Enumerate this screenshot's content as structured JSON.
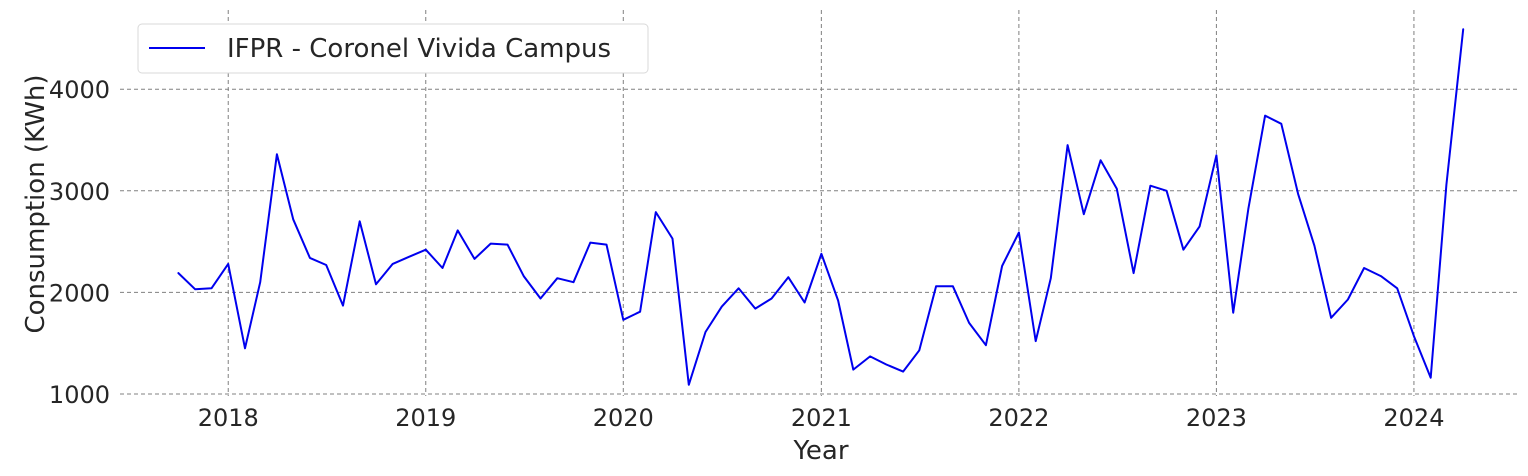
{
  "chart_data": {
    "type": "line",
    "xlabel": "Year",
    "ylabel": "Consumption (KWh)",
    "x_ticks": [
      "2018",
      "2019",
      "2020",
      "2021",
      "2022",
      "2023",
      "2024"
    ],
    "y_ticks": [
      "1000",
      "2000",
      "3000",
      "4000"
    ],
    "xlim": [
      "2017-06-15",
      "2024-07-15"
    ],
    "ylim": [
      980,
      4780
    ],
    "grid": true,
    "legend_position": "top-left",
    "series": [
      {
        "name": "IFPR - Coronel Vivida Campus",
        "color": "#0000ee",
        "points": [
          [
            "2017-10-01",
            2190
          ],
          [
            "2017-11-01",
            2030
          ],
          [
            "2017-12-01",
            2040
          ],
          [
            "2018-01-01",
            2280
          ],
          [
            "2018-02-01",
            1450
          ],
          [
            "2018-03-01",
            2100
          ],
          [
            "2018-04-01",
            3360
          ],
          [
            "2018-05-01",
            2720
          ],
          [
            "2018-06-01",
            2340
          ],
          [
            "2018-07-01",
            2270
          ],
          [
            "2018-08-01",
            1870
          ],
          [
            "2018-09-01",
            2700
          ],
          [
            "2018-10-01",
            2080
          ],
          [
            "2018-11-01",
            2280
          ],
          [
            "2018-12-01",
            2350
          ],
          [
            "2019-01-01",
            2420
          ],
          [
            "2019-02-01",
            2240
          ],
          [
            "2019-03-01",
            2610
          ],
          [
            "2019-04-01",
            2330
          ],
          [
            "2019-05-01",
            2480
          ],
          [
            "2019-06-01",
            2470
          ],
          [
            "2019-07-01",
            2160
          ],
          [
            "2019-08-01",
            1940
          ],
          [
            "2019-09-01",
            2140
          ],
          [
            "2019-10-01",
            2100
          ],
          [
            "2019-11-01",
            2490
          ],
          [
            "2019-12-01",
            2470
          ],
          [
            "2020-01-01",
            1730
          ],
          [
            "2020-02-01",
            1810
          ],
          [
            "2020-03-01",
            2790
          ],
          [
            "2020-04-01",
            2530
          ],
          [
            "2020-05-01",
            1090
          ],
          [
            "2020-06-01",
            1610
          ],
          [
            "2020-07-01",
            1860
          ],
          [
            "2020-08-01",
            2040
          ],
          [
            "2020-09-01",
            1840
          ],
          [
            "2020-10-01",
            1940
          ],
          [
            "2020-11-01",
            2150
          ],
          [
            "2020-12-01",
            1900
          ],
          [
            "2021-01-01",
            2380
          ],
          [
            "2021-02-01",
            1920
          ],
          [
            "2021-03-01",
            1240
          ],
          [
            "2021-04-01",
            1370
          ],
          [
            "2021-05-01",
            1290
          ],
          [
            "2021-06-01",
            1220
          ],
          [
            "2021-07-01",
            1430
          ],
          [
            "2021-08-01",
            2060
          ],
          [
            "2021-09-01",
            2060
          ],
          [
            "2021-10-01",
            1700
          ],
          [
            "2021-11-01",
            1480
          ],
          [
            "2021-12-01",
            2260
          ],
          [
            "2022-01-01",
            2590
          ],
          [
            "2022-02-01",
            1520
          ],
          [
            "2022-03-01",
            2140
          ],
          [
            "2022-04-01",
            3450
          ],
          [
            "2022-05-01",
            2770
          ],
          [
            "2022-06-01",
            3300
          ],
          [
            "2022-07-01",
            3020
          ],
          [
            "2022-08-01",
            2190
          ],
          [
            "2022-09-01",
            3050
          ],
          [
            "2022-10-01",
            3000
          ],
          [
            "2022-11-01",
            2420
          ],
          [
            "2022-12-01",
            2650
          ],
          [
            "2023-01-01",
            3350
          ],
          [
            "2023-02-01",
            1800
          ],
          [
            "2023-03-01",
            2820
          ],
          [
            "2023-04-01",
            3740
          ],
          [
            "2023-05-01",
            3660
          ],
          [
            "2023-06-01",
            2970
          ],
          [
            "2023-07-01",
            2460
          ],
          [
            "2023-08-01",
            1750
          ],
          [
            "2023-09-01",
            1930
          ],
          [
            "2023-10-01",
            2240
          ],
          [
            "2023-11-01",
            2160
          ],
          [
            "2023-12-01",
            2040
          ],
          [
            "2024-01-01",
            1570
          ],
          [
            "2024-02-01",
            1160
          ],
          [
            "2024-03-01",
            3060
          ],
          [
            "2024-04-01",
            4590
          ]
        ]
      }
    ]
  }
}
